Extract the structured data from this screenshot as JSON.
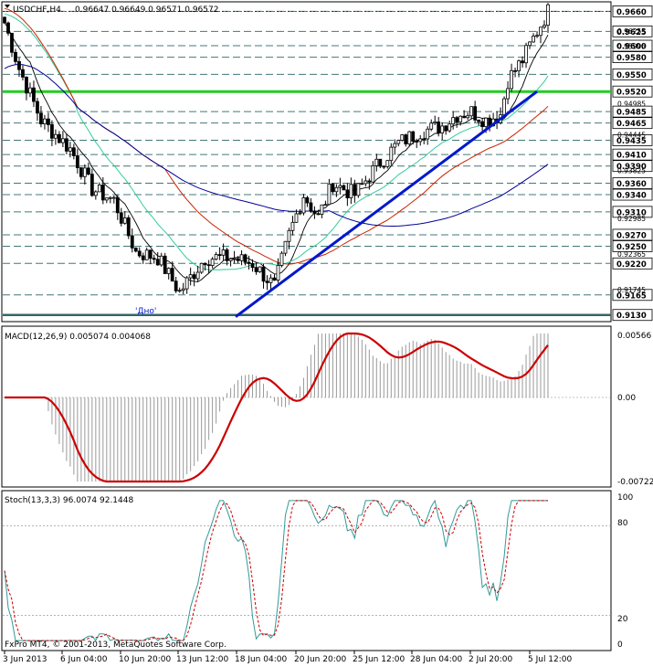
{
  "header": {
    "symbol": "USDCHF,H4",
    "ohlc": "0.96647 0.96649 0.96571 0.96572"
  },
  "main_panel": {
    "annotation": "'Дно'",
    "price_min": 0.912,
    "price_max": 0.9675,
    "level_labels": [
      "0.9660",
      "0.9625",
      "0.9600",
      "0.9580",
      "0.9550",
      "0.9520",
      "0.9485",
      "0.9465",
      "0.9435",
      "0.9410",
      "0.9390",
      "0.9360",
      "0.9340",
      "0.9310",
      "0.9270",
      "0.9250",
      "0.9220",
      "0.9165",
      "0.9130"
    ],
    "minor_labels": [
      "0.9625",
      "0.9550",
      "0.9485",
      "0.9435",
      "0.9410",
      "0.9390",
      "0.9325",
      "0.9270",
      "0.9220",
      "0.9165",
      "0.9130"
    ],
    "extra_labels": [
      "0.96255",
      "0.95995",
      "0.94985",
      "0.94445",
      "0.93825",
      "0.92985",
      "0.92365",
      "0.91745"
    ],
    "highlight_level": "0.9520",
    "colors": {
      "support": "#22cc22",
      "trend": "#0018cc",
      "ma_red": "#cc2200",
      "ma_blue": "#000099",
      "ma_teal": "#33cc99",
      "ma_black": "#000000",
      "grid": "#447777",
      "current": "#000000"
    }
  },
  "macd_panel": {
    "label": "MACD(12,26,9) 0.005074 0.004068",
    "top_label": "0.00566",
    "zero_label": "0.00",
    "bottom_label": "-0.007223"
  },
  "stoch_panel": {
    "label": "Stoch(13,3,3) 96.0074 92.1448",
    "levels": [
      "100",
      "80",
      "20",
      "0"
    ]
  },
  "footer": {
    "copyright": "FxPro MT4, © 2001-2013, MetaQuotes Software Corp."
  },
  "x_axis": {
    "labels": [
      "3 Jun 2013",
      "6 Jun 04:00",
      "10 Jun 20:00",
      "13 Jun 12:00",
      "18 Jun 04:00",
      "20 Jun 20:00",
      "25 Jun 12:00",
      "28 Jun 04:00",
      "2 Jul 20:00",
      "5 Jul 12:00"
    ]
  },
  "chart_data": {
    "type": "candlestick",
    "symbol": "USDCHF",
    "timeframe": "H4",
    "last_price": 0.96572,
    "x": [
      "3 Jun 2013",
      "6 Jun 04:00",
      "10 Jun 20:00",
      "13 Jun 12:00",
      "18 Jun 04:00",
      "20 Jun 20:00",
      "25 Jun 12:00",
      "28 Jun 04:00",
      "2 Jul 20:00",
      "5 Jul 12:00"
    ],
    "close_estimate": [
      0.961,
      0.942,
      0.925,
      0.923,
      0.919,
      0.933,
      0.942,
      0.946,
      0.948,
      0.966
    ],
    "support_level": 0.952,
    "low_level": 0.913,
    "macd": {
      "value": 0.005074,
      "signal": 0.004068,
      "max": 0.00566,
      "min": -0.007223
    },
    "stochastic": {
      "k": 96.0074,
      "d": 92.1448,
      "levels": [
        20,
        80
      ]
    }
  }
}
